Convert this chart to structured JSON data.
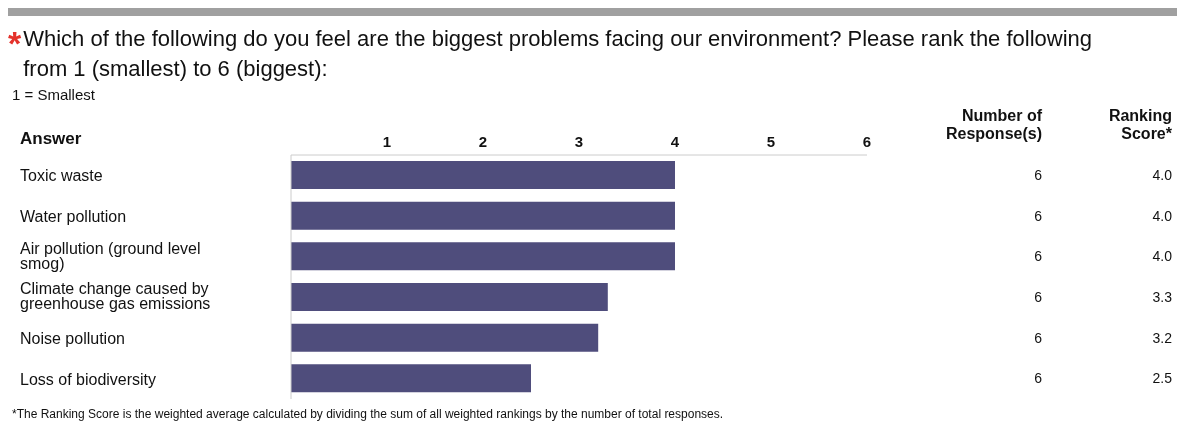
{
  "chart_data": {
    "type": "bar",
    "orientation": "horizontal",
    "title": "Which of the following do you feel are the biggest problems facing our environment? Please rank the following from 1 (smallest) to 6 (biggest):",
    "subtitle": "1 = Smallest",
    "ylabel": "Answer",
    "categories": [
      "Toxic waste",
      "Water pollution",
      "Air pollution (ground level smog)",
      "Climate change caused by greenhouse gas emissions",
      "Noise pollution",
      "Loss of biodiversity"
    ],
    "values": [
      4.0,
      4.0,
      4.0,
      3.3,
      3.2,
      2.5
    ],
    "value_labels": [
      "4.0",
      "4.0",
      "4.0",
      "3.3",
      "3.2",
      "2.5"
    ],
    "color": "#4f4d7c",
    "xlim": [
      0,
      6
    ],
    "xticks": [
      1,
      2,
      3,
      4,
      5,
      6
    ],
    "annotations": [
      "*",
      "Number of Response(s)",
      "Ranking Score*",
      "*The Ranking Score is the weighted average calculated by dividing the sum of all weighted rankings by the number of total responses.",
      "6",
      "6",
      "6",
      "6",
      "6",
      "6"
    ]
  }
}
